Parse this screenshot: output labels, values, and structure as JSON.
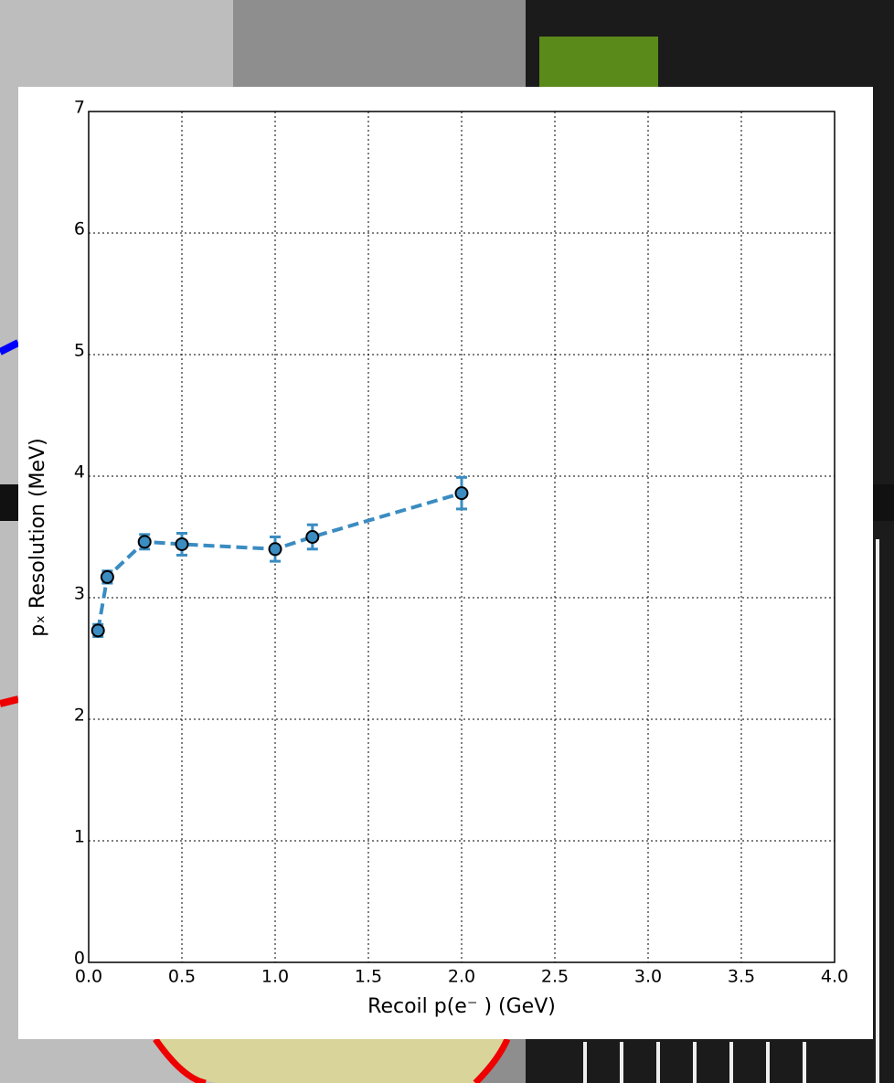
{
  "chart_data": {
    "type": "line",
    "x_label": "Recoil p(e⁻ ) (GeV)",
    "y_label": "pₓ Resolution (MeV)",
    "series": [
      {
        "x": [
          0.05,
          0.1,
          0.3,
          0.5,
          1.0,
          1.2,
          2.0
        ],
        "values": [
          2.73,
          3.17,
          3.46,
          3.44,
          3.4,
          3.5,
          3.86
        ],
        "errors": [
          0.05,
          0.05,
          0.06,
          0.09,
          0.1,
          0.1,
          0.13
        ],
        "color": "#3a8cc1"
      }
    ],
    "xlim": [
      0,
      4
    ],
    "ylim": [
      0,
      7
    ],
    "xticks": [
      {
        "value": 0,
        "label": "0.0"
      },
      0.5,
      {
        "value": 1,
        "label": "1.0"
      },
      1.5,
      {
        "value": 2,
        "label": "2.0"
      },
      2.5,
      {
        "value": 3,
        "label": "3.0"
      },
      3.5,
      {
        "value": 4,
        "label": "4.0"
      }
    ],
    "yticks": [
      0,
      1,
      2,
      3,
      4,
      5,
      6,
      7
    ],
    "grid": true
  }
}
